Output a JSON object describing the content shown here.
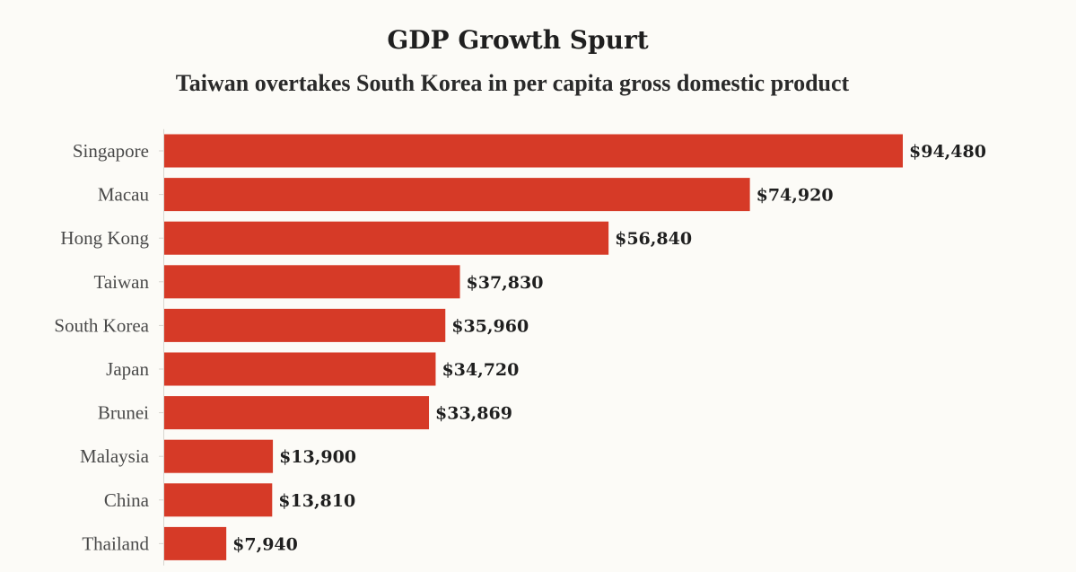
{
  "chart_data": {
    "type": "bar",
    "orientation": "horizontal",
    "title": "GDP Growth Spurt",
    "subtitle": "Taiwan overtakes South Korea in per capita gross domestic product",
    "categories": [
      "Singapore",
      "Macau",
      "Hong Kong",
      "Taiwan",
      "South Korea",
      "Japan",
      "Brunei",
      "Malaysia",
      "China",
      "Thailand"
    ],
    "values": [
      94480,
      74920,
      56840,
      37830,
      35960,
      34720,
      33869,
      13900,
      13810,
      7940
    ],
    "value_labels": [
      "$94,480",
      "$74,920",
      "$56,840",
      "$37,830",
      "$35,960",
      "$34,720",
      "$33,869",
      "$13,900",
      "$13,810",
      "$7,940"
    ],
    "xlim": [
      0,
      94480
    ],
    "bar_color": "#d63a27",
    "grid": false,
    "legend": "none"
  }
}
